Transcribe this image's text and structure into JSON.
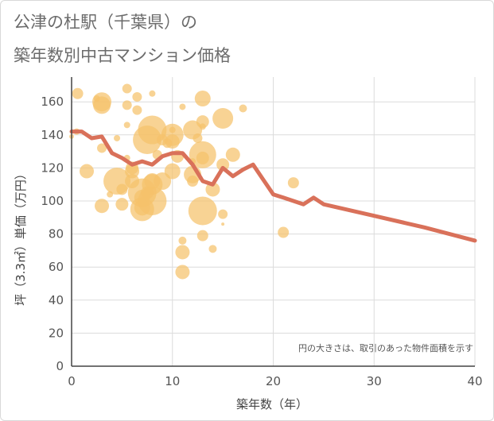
{
  "title_line1": "公津の杜駅（千葉県）の",
  "title_line2": "築年数別中古マンション価格",
  "note": "円の大きさは、取引のあった物件面積を示す",
  "colors": {
    "bubble": "#f5c26b",
    "line": "#d9715a",
    "grid": "#dcdcdc",
    "axis": "#444444"
  },
  "chart_data": {
    "type": "scatter",
    "xlabel": "築年数（年）",
    "ylabel": "坪（3.3㎡）単価（万円）",
    "xlim": [
      0,
      40
    ],
    "ylim": [
      0,
      175
    ],
    "xticks": [
      0,
      10,
      20,
      30,
      40
    ],
    "yticks": [
      0,
      20,
      40,
      60,
      80,
      100,
      120,
      140,
      160
    ],
    "grid": true,
    "bubbles": [
      {
        "x": 0,
        "y": 139,
        "r": 3
      },
      {
        "x": 0.5,
        "y": 142,
        "r": 4
      },
      {
        "x": 0.6,
        "y": 165,
        "r": 7
      },
      {
        "x": 1.5,
        "y": 118,
        "r": 9
      },
      {
        "x": 2.5,
        "y": 162,
        "r": 4
      },
      {
        "x": 3,
        "y": 160,
        "r": 12
      },
      {
        "x": 3,
        "y": 158,
        "r": 11
      },
      {
        "x": 3,
        "y": 132,
        "r": 6
      },
      {
        "x": 3,
        "y": 97,
        "r": 9
      },
      {
        "x": 3.8,
        "y": 104,
        "r": 4
      },
      {
        "x": 4.5,
        "y": 138,
        "r": 4
      },
      {
        "x": 4.5,
        "y": 112,
        "r": 17
      },
      {
        "x": 5,
        "y": 107,
        "r": 7
      },
      {
        "x": 5,
        "y": 98,
        "r": 8
      },
      {
        "x": 5.5,
        "y": 168,
        "r": 6
      },
      {
        "x": 5.5,
        "y": 158,
        "r": 6
      },
      {
        "x": 5.5,
        "y": 146,
        "r": 4
      },
      {
        "x": 5.5,
        "y": 126,
        "r": 4
      },
      {
        "x": 6,
        "y": 120,
        "r": 8
      },
      {
        "x": 6,
        "y": 118,
        "r": 9
      },
      {
        "x": 6,
        "y": 112,
        "r": 9
      },
      {
        "x": 6.5,
        "y": 155,
        "r": 6
      },
      {
        "x": 6.5,
        "y": 163,
        "r": 6
      },
      {
        "x": 7,
        "y": 105,
        "r": 18
      },
      {
        "x": 7,
        "y": 102,
        "r": 10
      },
      {
        "x": 7,
        "y": 95,
        "r": 15
      },
      {
        "x": 7,
        "y": 96,
        "r": 10
      },
      {
        "x": 7.5,
        "y": 137,
        "r": 18
      },
      {
        "x": 7.5,
        "y": 105,
        "r": 8
      },
      {
        "x": 8,
        "y": 165,
        "r": 4
      },
      {
        "x": 8,
        "y": 143,
        "r": 18
      },
      {
        "x": 8,
        "y": 112,
        "r": 10
      },
      {
        "x": 8,
        "y": 110,
        "r": 13
      },
      {
        "x": 8,
        "y": 100,
        "r": 18
      },
      {
        "x": 8.5,
        "y": 128,
        "r": 6
      },
      {
        "x": 9,
        "y": 137,
        "r": 7
      },
      {
        "x": 9,
        "y": 112,
        "r": 11
      },
      {
        "x": 9.5,
        "y": 135,
        "r": 6
      },
      {
        "x": 10,
        "y": 143,
        "r": 4
      },
      {
        "x": 10,
        "y": 140,
        "r": 14
      },
      {
        "x": 10,
        "y": 136,
        "r": 9
      },
      {
        "x": 10,
        "y": 118,
        "r": 10
      },
      {
        "x": 10.5,
        "y": 127,
        "r": 8
      },
      {
        "x": 11,
        "y": 157,
        "r": 4
      },
      {
        "x": 11,
        "y": 76,
        "r": 5
      },
      {
        "x": 11,
        "y": 69,
        "r": 9
      },
      {
        "x": 11,
        "y": 57,
        "r": 9
      },
      {
        "x": 12,
        "y": 143,
        "r": 12
      },
      {
        "x": 12,
        "y": 124,
        "r": 4
      },
      {
        "x": 12,
        "y": 116,
        "r": 11
      },
      {
        "x": 12,
        "y": 112,
        "r": 7
      },
      {
        "x": 12.5,
        "y": 138,
        "r": 6
      },
      {
        "x": 13,
        "y": 162,
        "r": 10
      },
      {
        "x": 13,
        "y": 148,
        "r": 8
      },
      {
        "x": 13,
        "y": 145,
        "r": 4
      },
      {
        "x": 13,
        "y": 128,
        "r": 17
      },
      {
        "x": 13,
        "y": 126,
        "r": 8
      },
      {
        "x": 13,
        "y": 94,
        "r": 18
      },
      {
        "x": 13,
        "y": 79,
        "r": 7
      },
      {
        "x": 14,
        "y": 107,
        "r": 9
      },
      {
        "x": 14,
        "y": 71,
        "r": 5
      },
      {
        "x": 15,
        "y": 150,
        "r": 13
      },
      {
        "x": 15,
        "y": 122,
        "r": 8
      },
      {
        "x": 15,
        "y": 92,
        "r": 6
      },
      {
        "x": 15,
        "y": 86,
        "r": 2
      },
      {
        "x": 16,
        "y": 128,
        "r": 9
      },
      {
        "x": 17,
        "y": 156,
        "r": 5
      },
      {
        "x": 21,
        "y": 81,
        "r": 7
      },
      {
        "x": 22,
        "y": 111,
        "r": 7
      }
    ],
    "trend_line": {
      "x": [
        0,
        0.5,
        1,
        2,
        3,
        3.5,
        4,
        5,
        6,
        7,
        8,
        9,
        10,
        11,
        12,
        13,
        14,
        15,
        16,
        17,
        18,
        19,
        20,
        21,
        22,
        23,
        24,
        25,
        30,
        35,
        40
      ],
      "y": [
        142,
        142,
        142,
        138,
        139,
        134,
        129,
        126,
        122,
        124,
        122,
        127,
        129,
        129,
        122,
        112,
        110,
        120,
        115,
        119,
        122,
        113,
        104,
        102,
        100,
        98,
        102,
        98,
        91,
        84,
        76
      ]
    }
  }
}
